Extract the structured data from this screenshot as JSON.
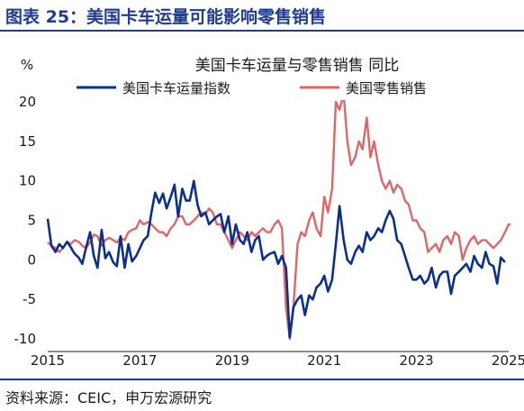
{
  "figure": {
    "label": "图表 25：美国卡车运量可能影响零售销售",
    "source": "资料来源：CEIC，申万宏源研究"
  },
  "colors": {
    "brand": "#1f3d8c",
    "series_truck": "#0b2f8f",
    "series_retail": "#e06666"
  },
  "chart_data": {
    "type": "line",
    "title": "美国卡车运量与零售销售 同比",
    "ylabel": "%",
    "xlabel": "",
    "ylim": [
      -10,
      20
    ],
    "yticks": [
      "-10",
      "-5",
      "0",
      "5",
      "10",
      "15",
      "20"
    ],
    "xticks": [
      "2015",
      "2017",
      "2019",
      "2021",
      "2023",
      "2025"
    ],
    "xlim": [
      2015.0,
      2025.0
    ],
    "grid": false,
    "legend_position": "top",
    "series": [
      {
        "name": "美国卡车运量指数",
        "color": "#0b2f8f",
        "points": [
          [
            2015.0,
            5.2
          ],
          [
            2015.08,
            1.8
          ],
          [
            2015.17,
            1.0
          ],
          [
            2015.25,
            2.0
          ],
          [
            2015.33,
            1.5
          ],
          [
            2015.42,
            2.3
          ],
          [
            2015.5,
            1.6
          ],
          [
            2015.58,
            0.8
          ],
          [
            2015.67,
            0.3
          ],
          [
            2015.75,
            -0.5
          ],
          [
            2015.83,
            1.5
          ],
          [
            2015.92,
            3.5
          ],
          [
            2016.0,
            0.5
          ],
          [
            2016.08,
            -1.0
          ],
          [
            2016.17,
            3.8
          ],
          [
            2016.25,
            0.2
          ],
          [
            2016.33,
            1.0
          ],
          [
            2016.42,
            -0.3
          ],
          [
            2016.5,
            -0.8
          ],
          [
            2016.58,
            3.0
          ],
          [
            2016.67,
            -1.0
          ],
          [
            2016.75,
            2.0
          ],
          [
            2016.83,
            -0.2
          ],
          [
            2016.92,
            0.5
          ],
          [
            2017.0,
            1.5
          ],
          [
            2017.08,
            2.5
          ],
          [
            2017.17,
            3.0
          ],
          [
            2017.25,
            6.0
          ],
          [
            2017.33,
            8.5
          ],
          [
            2017.42,
            7.2
          ],
          [
            2017.5,
            8.4
          ],
          [
            2017.58,
            6.5
          ],
          [
            2017.67,
            8.0
          ],
          [
            2017.75,
            9.5
          ],
          [
            2017.83,
            5.5
          ],
          [
            2017.92,
            9.0
          ],
          [
            2018.0,
            7.5
          ],
          [
            2018.08,
            7.5
          ],
          [
            2018.17,
            10.0
          ],
          [
            2018.25,
            7.0
          ],
          [
            2018.33,
            5.5
          ],
          [
            2018.42,
            6.0
          ],
          [
            2018.5,
            4.5
          ],
          [
            2018.58,
            5.0
          ],
          [
            2018.67,
            5.5
          ],
          [
            2018.75,
            5.8
          ],
          [
            2018.83,
            3.5
          ],
          [
            2018.92,
            5.5
          ],
          [
            2019.0,
            2.0
          ],
          [
            2019.08,
            4.5
          ],
          [
            2019.17,
            2.5
          ],
          [
            2019.25,
            2.0
          ],
          [
            2019.33,
            3.5
          ],
          [
            2019.42,
            1.0
          ],
          [
            2019.5,
            2.5
          ],
          [
            2019.58,
            3.0
          ],
          [
            2019.67,
            0.0
          ],
          [
            2019.75,
            0.5
          ],
          [
            2019.83,
            0.8
          ],
          [
            2019.92,
            1.0
          ],
          [
            2020.0,
            -0.5
          ],
          [
            2020.08,
            0.5
          ],
          [
            2020.17,
            -1.0
          ],
          [
            2020.25,
            -9.8
          ],
          [
            2020.33,
            -6.0
          ],
          [
            2020.42,
            -5.0
          ],
          [
            2020.5,
            -4.5
          ],
          [
            2020.58,
            -7.0
          ],
          [
            2020.67,
            -4.5
          ],
          [
            2020.75,
            -5.0
          ],
          [
            2020.83,
            -3.5
          ],
          [
            2020.92,
            -3.0
          ],
          [
            2021.0,
            -2.0
          ],
          [
            2021.08,
            -4.0
          ],
          [
            2021.17,
            -2.5
          ],
          [
            2021.25,
            2.0
          ],
          [
            2021.33,
            6.8
          ],
          [
            2021.42,
            2.5
          ],
          [
            2021.5,
            0.0
          ],
          [
            2021.58,
            -0.5
          ],
          [
            2021.67,
            1.0
          ],
          [
            2021.75,
            1.8
          ],
          [
            2021.83,
            1.0
          ],
          [
            2021.92,
            3.5
          ],
          [
            2022.0,
            2.5
          ],
          [
            2022.08,
            3.0
          ],
          [
            2022.17,
            4.0
          ],
          [
            2022.25,
            3.5
          ],
          [
            2022.33,
            5.0
          ],
          [
            2022.42,
            6.2
          ],
          [
            2022.5,
            5.2
          ],
          [
            2022.58,
            2.5
          ],
          [
            2022.67,
            2.0
          ],
          [
            2022.75,
            0.5
          ],
          [
            2022.83,
            -1.0
          ],
          [
            2022.92,
            -2.5
          ],
          [
            2023.0,
            -2.5
          ],
          [
            2023.08,
            -2.0
          ],
          [
            2023.17,
            -3.0
          ],
          [
            2023.25,
            -2.5
          ],
          [
            2023.33,
            -1.0
          ],
          [
            2023.42,
            -3.5
          ],
          [
            2023.5,
            -2.0
          ],
          [
            2023.58,
            -1.5
          ],
          [
            2023.67,
            -1.5
          ],
          [
            2023.75,
            -4.3
          ],
          [
            2023.83,
            -2.0
          ],
          [
            2023.92,
            -1.5
          ],
          [
            2024.0,
            -1.0
          ],
          [
            2024.08,
            -0.5
          ],
          [
            2024.17,
            -1.5
          ],
          [
            2024.25,
            0.5
          ],
          [
            2024.33,
            -0.5
          ],
          [
            2024.42,
            -1.0
          ],
          [
            2024.5,
            1.0
          ],
          [
            2024.58,
            -0.5
          ],
          [
            2024.67,
            -0.8
          ],
          [
            2024.75,
            -3.0
          ],
          [
            2024.83,
            0.3
          ],
          [
            2024.92,
            -0.3
          ]
        ]
      },
      {
        "name": "美国零售销售",
        "color": "#e06666",
        "points": [
          [
            2015.0,
            2.2
          ],
          [
            2015.08,
            1.8
          ],
          [
            2015.17,
            1.5
          ],
          [
            2015.25,
            1.0
          ],
          [
            2015.33,
            1.5
          ],
          [
            2015.42,
            2.3
          ],
          [
            2015.5,
            2.0
          ],
          [
            2015.58,
            2.5
          ],
          [
            2015.67,
            2.3
          ],
          [
            2015.75,
            1.8
          ],
          [
            2015.83,
            1.5
          ],
          [
            2015.92,
            2.2
          ],
          [
            2016.0,
            3.2
          ],
          [
            2016.08,
            3.0
          ],
          [
            2016.17,
            1.8
          ],
          [
            2016.25,
            2.5
          ],
          [
            2016.33,
            2.8
          ],
          [
            2016.42,
            2.5
          ],
          [
            2016.5,
            2.2
          ],
          [
            2016.58,
            2.8
          ],
          [
            2016.67,
            2.5
          ],
          [
            2016.75,
            3.5
          ],
          [
            2016.83,
            3.8
          ],
          [
            2016.92,
            4.0
          ],
          [
            2017.0,
            5.0
          ],
          [
            2017.08,
            4.5
          ],
          [
            2017.17,
            4.8
          ],
          [
            2017.25,
            4.5
          ],
          [
            2017.33,
            4.0
          ],
          [
            2017.42,
            3.5
          ],
          [
            2017.5,
            3.5
          ],
          [
            2017.58,
            3.0
          ],
          [
            2017.67,
            4.0
          ],
          [
            2017.75,
            4.5
          ],
          [
            2017.83,
            5.5
          ],
          [
            2017.92,
            5.5
          ],
          [
            2018.0,
            4.5
          ],
          [
            2018.08,
            4.5
          ],
          [
            2018.17,
            5.0
          ],
          [
            2018.25,
            5.5
          ],
          [
            2018.33,
            6.0
          ],
          [
            2018.42,
            5.8
          ],
          [
            2018.5,
            6.5
          ],
          [
            2018.58,
            6.0
          ],
          [
            2018.67,
            4.5
          ],
          [
            2018.75,
            4.5
          ],
          [
            2018.83,
            3.5
          ],
          [
            2018.92,
            2.5
          ],
          [
            2019.0,
            1.5
          ],
          [
            2019.08,
            2.5
          ],
          [
            2019.17,
            3.5
          ],
          [
            2019.25,
            3.0
          ],
          [
            2019.33,
            2.5
          ],
          [
            2019.42,
            3.5
          ],
          [
            2019.5,
            3.0
          ],
          [
            2019.58,
            3.5
          ],
          [
            2019.67,
            4.0
          ],
          [
            2019.75,
            3.5
          ],
          [
            2019.83,
            3.5
          ],
          [
            2019.92,
            4.5
          ],
          [
            2020.0,
            5.0
          ],
          [
            2020.08,
            4.0
          ],
          [
            2020.17,
            -6.0
          ],
          [
            2020.25,
            -10.0
          ],
          [
            2020.33,
            -6.0
          ],
          [
            2020.42,
            2.0
          ],
          [
            2020.5,
            3.5
          ],
          [
            2020.58,
            3.0
          ],
          [
            2020.67,
            5.0
          ],
          [
            2020.75,
            6.0
          ],
          [
            2020.83,
            4.0
          ],
          [
            2020.92,
            3.0
          ],
          [
            2021.0,
            8.0
          ],
          [
            2021.08,
            6.0
          ],
          [
            2021.17,
            9.0
          ],
          [
            2021.25,
            20.0
          ],
          [
            2021.33,
            19.0
          ],
          [
            2021.42,
            21.0
          ],
          [
            2021.5,
            15.0
          ],
          [
            2021.58,
            12.0
          ],
          [
            2021.67,
            13.0
          ],
          [
            2021.75,
            15.0
          ],
          [
            2021.83,
            14.0
          ],
          [
            2021.92,
            18.0
          ],
          [
            2022.0,
            13.0
          ],
          [
            2022.08,
            15.0
          ],
          [
            2022.17,
            12.0
          ],
          [
            2022.25,
            10.0
          ],
          [
            2022.33,
            9.0
          ],
          [
            2022.42,
            10.0
          ],
          [
            2022.5,
            8.5
          ],
          [
            2022.58,
            9.5
          ],
          [
            2022.67,
            9.0
          ],
          [
            2022.75,
            7.5
          ],
          [
            2022.83,
            7.0
          ],
          [
            2022.92,
            5.0
          ],
          [
            2023.0,
            5.0
          ],
          [
            2023.08,
            4.0
          ],
          [
            2023.17,
            3.5
          ],
          [
            2023.25,
            1.0
          ],
          [
            2023.33,
            1.5
          ],
          [
            2023.42,
            2.0
          ],
          [
            2023.5,
            1.0
          ],
          [
            2023.58,
            2.5
          ],
          [
            2023.67,
            3.0
          ],
          [
            2023.75,
            2.0
          ],
          [
            2023.83,
            3.5
          ],
          [
            2023.92,
            3.0
          ],
          [
            2024.0,
            0.0
          ],
          [
            2024.08,
            1.5
          ],
          [
            2024.17,
            2.5
          ],
          [
            2024.25,
            3.0
          ],
          [
            2024.33,
            2.0
          ],
          [
            2024.42,
            2.5
          ],
          [
            2024.5,
            2.5
          ],
          [
            2024.58,
            2.0
          ],
          [
            2024.67,
            1.5
          ],
          [
            2024.75,
            2.0
          ],
          [
            2024.83,
            2.5
          ],
          [
            2024.92,
            3.5
          ],
          [
            2025.0,
            4.5
          ],
          [
            2025.08,
            4.5
          ],
          [
            2025.17,
            4.2
          ],
          [
            2025.25,
            4.8
          ],
          [
            2025.33,
            4.0
          ]
        ]
      }
    ]
  }
}
